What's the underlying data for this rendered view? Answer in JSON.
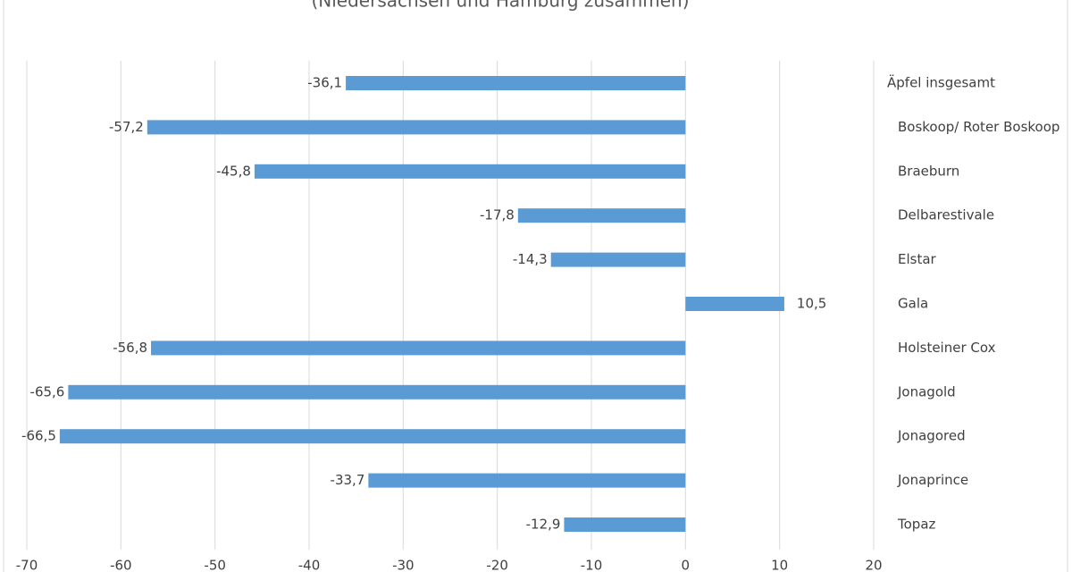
{
  "chart_data": {
    "type": "bar",
    "orientation": "horizontal",
    "subtitle": "(Niedersachsen und Hamburg zusammen)",
    "categories": [
      "Äpfel insgesamt",
      "Boskoop/ Roter Boskoop",
      "Braeburn",
      "Delbarestivale",
      "Elstar",
      "Gala",
      "Holsteiner Cox",
      "Jonagold",
      "Jonagored",
      "Jonaprince",
      "Topaz"
    ],
    "values": [
      -36.1,
      -57.2,
      -45.8,
      -17.8,
      -14.3,
      10.5,
      -56.8,
      -65.6,
      -66.5,
      -33.7,
      -12.9
    ],
    "value_labels": [
      "-36,1",
      "-57,2",
      "-45,8",
      "-17,8",
      "-14,3",
      "10,5",
      "-56,8",
      "-65,6",
      "-66,5",
      "-33,7",
      "-12,9"
    ],
    "color": "#5b9bd5",
    "xlim": [
      -70,
      20
    ],
    "xticks": [
      -70,
      -60,
      -50,
      -40,
      -30,
      -20,
      -10,
      0,
      10,
      20
    ],
    "grid": true
  }
}
